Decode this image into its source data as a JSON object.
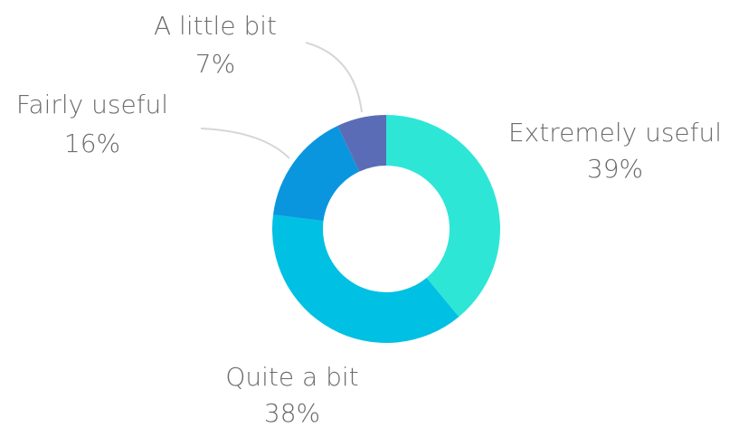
{
  "chart_data": {
    "type": "pie",
    "donut": true,
    "categories": [
      "Extremely useful",
      "Quite a bit",
      "Fairly useful",
      "A little bit"
    ],
    "values": [
      39,
      38,
      16,
      7
    ],
    "value_labels": [
      "39%",
      "38%",
      "16%",
      "7%"
    ],
    "colors": [
      "#2ee6d6",
      "#00c0e3",
      "#0a96de",
      "#5b6cb6"
    ],
    "start_angle_deg": 0,
    "direction": "clockwise"
  }
}
